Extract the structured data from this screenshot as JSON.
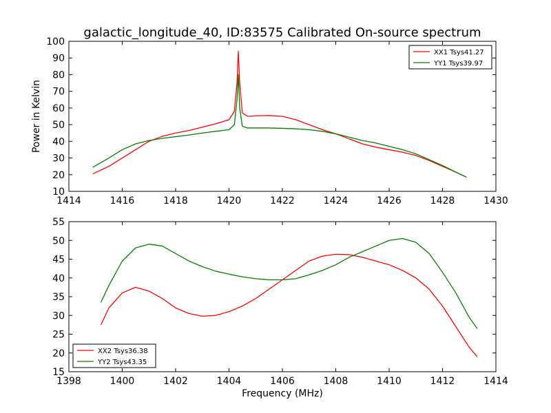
{
  "figure": {
    "title": "galactic_longitude_40, ID:83575 Calibrated On-source spectrum",
    "xlabel": "Frequency (MHz)",
    "ylabel": "Power in Kelvin"
  },
  "chart_data": [
    {
      "type": "line",
      "title": "galactic_longitude_40, ID:83575 Calibrated On-source spectrum",
      "xlabel": "",
      "ylabel": "Power in Kelvin",
      "xlim": [
        1414,
        1430
      ],
      "ylim": [
        10,
        100
      ],
      "xticks": [
        "1414",
        "1416",
        "1418",
        "1420",
        "1422",
        "1424",
        "1426",
        "1428",
        "1430"
      ],
      "yticks": [
        "10",
        "20",
        "30",
        "40",
        "50",
        "60",
        "70",
        "80",
        "90",
        "100"
      ],
      "grid": false,
      "legend_position": "upper right",
      "series": [
        {
          "name": "XX1 Tsys41.27",
          "color": "#ff0000",
          "x": [
            1414.9,
            1415.5,
            1416,
            1416.5,
            1417,
            1417.5,
            1418,
            1418.5,
            1419,
            1419.5,
            1420,
            1420.2,
            1420.3,
            1420.35,
            1420.4,
            1420.5,
            1420.7,
            1421,
            1421.5,
            1422,
            1422.5,
            1423,
            1423.5,
            1424,
            1424.5,
            1425,
            1425.5,
            1426,
            1426.5,
            1427,
            1427.5,
            1428,
            1428.5,
            1428.9
          ],
          "y": [
            20.5,
            25,
            30,
            35,
            40,
            43,
            45,
            46.5,
            48.5,
            50.5,
            53,
            58,
            75,
            94,
            75,
            57,
            55,
            55.3,
            55.5,
            55,
            53,
            50,
            47,
            44.5,
            41.5,
            38.5,
            36.5,
            35,
            33.5,
            31.5,
            28.5,
            25,
            21.5,
            18.5
          ]
        },
        {
          "name": "YY1 Tsys39.97",
          "color": "#008000",
          "x": [
            1414.9,
            1415.5,
            1416,
            1416.5,
            1417,
            1417.5,
            1418,
            1418.5,
            1419,
            1419.5,
            1420,
            1420.2,
            1420.3,
            1420.35,
            1420.4,
            1420.5,
            1420.7,
            1421,
            1421.5,
            1422,
            1422.5,
            1423,
            1423.5,
            1424,
            1424.5,
            1425,
            1425.5,
            1426,
            1426.5,
            1427,
            1427.5,
            1428,
            1428.5,
            1428.9
          ],
          "y": [
            24.5,
            30,
            35,
            38.5,
            40.5,
            41.8,
            42.8,
            43.8,
            45,
            46,
            47,
            50,
            65,
            80,
            60,
            49,
            48,
            48,
            48,
            47.8,
            47.5,
            47,
            46,
            44.5,
            42.5,
            40.5,
            39,
            37,
            35,
            32.5,
            29,
            25.5,
            21.5,
            18.5
          ]
        }
      ]
    },
    {
      "type": "line",
      "title": "",
      "xlabel": "Frequency (MHz)",
      "ylabel": "",
      "xlim": [
        1398,
        1414
      ],
      "ylim": [
        15,
        55
      ],
      "xticks": [
        "1398",
        "1400",
        "1402",
        "1404",
        "1406",
        "1408",
        "1410",
        "1412",
        "1414"
      ],
      "yticks": [
        "15",
        "20",
        "25",
        "30",
        "35",
        "40",
        "45",
        "50",
        "55"
      ],
      "grid": false,
      "legend_position": "lower left",
      "series": [
        {
          "name": "XX2 Tsys36.38",
          "color": "#ff0000",
          "x": [
            1399.2,
            1399.5,
            1400,
            1400.5,
            1401,
            1401.5,
            1402,
            1402.5,
            1403,
            1403.5,
            1404,
            1404.5,
            1405,
            1405.5,
            1406,
            1406.5,
            1407,
            1407.5,
            1408,
            1408.5,
            1409,
            1409.5,
            1410,
            1410.5,
            1411,
            1411.5,
            1412,
            1412.5,
            1413,
            1413.3
          ],
          "y": [
            27.5,
            32,
            36,
            37.5,
            36.5,
            34.5,
            32,
            30.5,
            29.8,
            30,
            31,
            32.5,
            34.5,
            37,
            39.5,
            42,
            44.5,
            45.8,
            46.3,
            46.2,
            45.5,
            44.5,
            43.5,
            42,
            40,
            37,
            32.5,
            27,
            21.5,
            19
          ]
        },
        {
          "name": "YY2 Tsys43.35",
          "color": "#008000",
          "x": [
            1399.2,
            1399.5,
            1400,
            1400.5,
            1401,
            1401.5,
            1402,
            1402.5,
            1403,
            1403.5,
            1404,
            1404.5,
            1405,
            1405.5,
            1406,
            1406.5,
            1407,
            1407.5,
            1408,
            1408.5,
            1409,
            1409.5,
            1410,
            1410.5,
            1411,
            1411.5,
            1412,
            1412.5,
            1413,
            1413.3
          ],
          "y": [
            33.5,
            38,
            44.5,
            48,
            49,
            48.5,
            46.5,
            44.5,
            43,
            41.8,
            41,
            40.3,
            39.8,
            39.5,
            39.5,
            39.8,
            40.8,
            42,
            43.5,
            45.5,
            47,
            48.5,
            50,
            50.5,
            49.5,
            46.5,
            41.5,
            36,
            29.5,
            26.5
          ]
        }
      ]
    }
  ]
}
